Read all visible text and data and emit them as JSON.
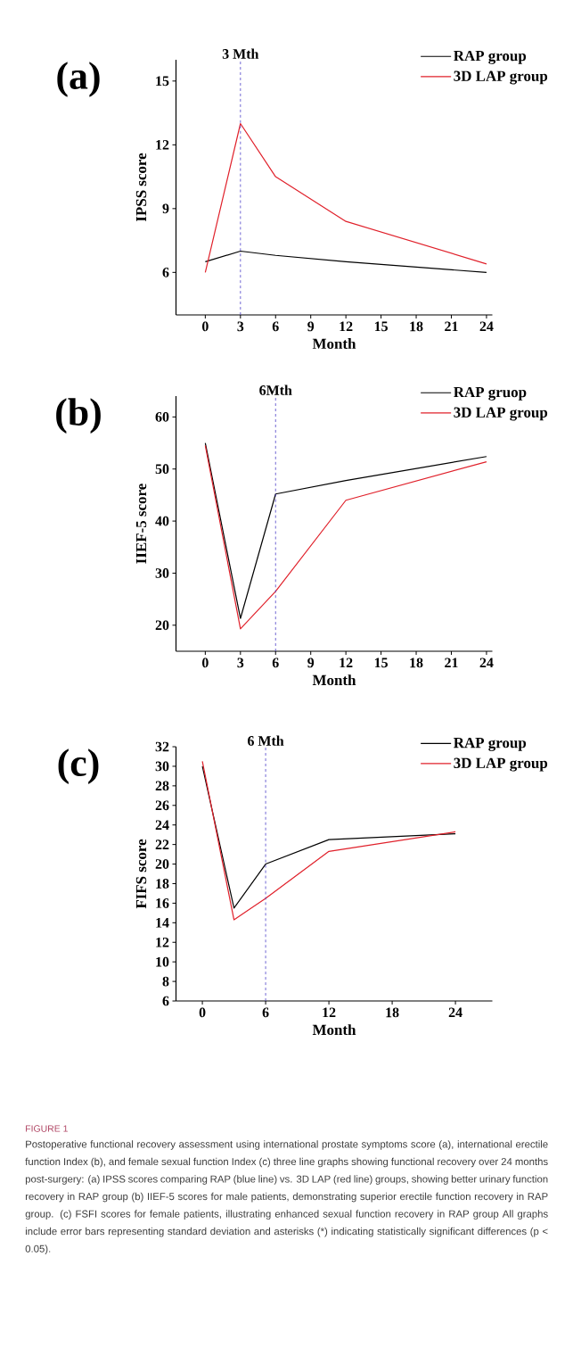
{
  "chart_data": [
    {
      "type": "line",
      "annotations": [
        "(a)"
      ],
      "xlabel": "Month",
      "ylabel": "IPSS score",
      "x": [
        0,
        3,
        6,
        12,
        24
      ],
      "series": [
        {
          "name": "RAP group",
          "color": "#000000",
          "values": [
            6.5,
            7.0,
            6.8,
            6.5,
            6.0
          ]
        },
        {
          "name": "3D LAP group",
          "color": "#e0202a",
          "values": [
            6.0,
            13.0,
            10.5,
            8.4,
            6.4
          ]
        }
      ],
      "xlim": [
        -2.5,
        24.5
      ],
      "ylim": [
        4,
        16
      ],
      "xticks": [
        0,
        3,
        6,
        9,
        12,
        15,
        18,
        21,
        24
      ],
      "yticks": [
        6,
        9,
        12,
        15
      ],
      "ref_lines": [
        {
          "axis": "x",
          "value": 3,
          "label": "3 Mth",
          "color": "#4b3fc8",
          "line_style": "dashed"
        }
      ],
      "legend": "top right"
    },
    {
      "type": "line",
      "annotations": [
        "(b)"
      ],
      "xlabel": "Month",
      "ylabel": "IIEF-5 score",
      "x": [
        0,
        3,
        6,
        12,
        24
      ],
      "series": [
        {
          "name": "RAP gruop",
          "color": "#000000",
          "values": [
            55.0,
            21.3,
            45.2,
            47.8,
            52.4
          ]
        },
        {
          "name": "3D LAP group",
          "color": "#e0202a",
          "values": [
            54.5,
            19.3,
            26.5,
            44.0,
            51.4
          ]
        }
      ],
      "xlim": [
        -2.5,
        24.5
      ],
      "ylim": [
        15,
        64
      ],
      "xticks": [
        0,
        3,
        6,
        9,
        12,
        15,
        18,
        21,
        24
      ],
      "yticks": [
        20,
        30,
        40,
        50,
        60
      ],
      "ref_lines": [
        {
          "axis": "x",
          "value": 6,
          "label": "6Mth",
          "color": "#4b3fc8",
          "line_style": "dashed"
        }
      ],
      "legend": "top right"
    },
    {
      "type": "line",
      "annotations": [
        "(c)",
        "FIGURE 1",
        "Postoperative functional recovery assessment using international prostate symptoms score (a), international erectile function Index (b), and female sexual function Index (c) three line graphs showing functional recovery over 24 months post-surgery: (a) IPSS scores comparing RAP (blue line) vs. 3D LAP (red line) groups, showing better urinary function recovery in RAP group (b) IIEF-5 scores for male patients, demonstrating superior erectile function recovery in RAP group. (c) FSFI scores for female patients, illustrating enhanced sexual function recovery in RAP group All graphs include error bars representing standard deviation and asterisks (*) indicating statistically significant differences (p < 0.05)."
      ],
      "xlabel": "Month",
      "ylabel": "FIFS score",
      "x": [
        0,
        3,
        6,
        12,
        24
      ],
      "series": [
        {
          "name": "RAP group",
          "color": "#000000",
          "values": [
            30.0,
            15.5,
            20.0,
            22.5,
            23.1
          ]
        },
        {
          "name": "3D LAP group",
          "color": "#e0202a",
          "values": [
            30.5,
            14.3,
            16.5,
            21.3,
            23.3
          ]
        }
      ],
      "xlim": [
        -2.5,
        27.5
      ],
      "ylim": [
        6,
        32
      ],
      "xticks": [
        0,
        6,
        12,
        18,
        24
      ],
      "yticks": [
        6,
        8,
        10,
        12,
        14,
        16,
        18,
        20,
        22,
        24,
        26,
        28,
        30,
        32
      ],
      "ref_lines": [
        {
          "axis": "x",
          "value": 6,
          "label": "6 Mth",
          "color": "#4b3fc8",
          "line_style": "dashed"
        }
      ],
      "legend": "top right"
    }
  ]
}
